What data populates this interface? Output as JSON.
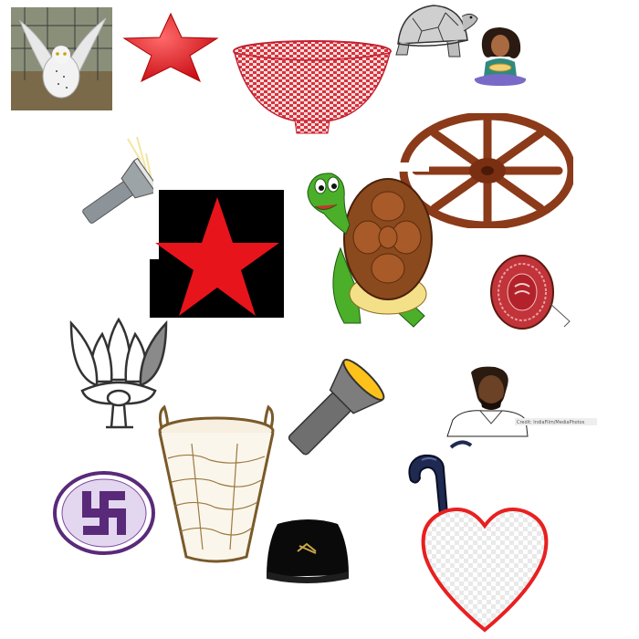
{
  "canvas": {
    "background": "#ffffff"
  },
  "items": [
    {
      "name": "owl-photo-icon",
      "kind": "photo"
    },
    {
      "name": "red-star-icon",
      "kind": "clipart"
    },
    {
      "name": "woven-basket-bowl-icon",
      "kind": "clipart"
    },
    {
      "name": "tortoise-sketch-icon",
      "kind": "drawing"
    },
    {
      "name": "woman-eating-icon",
      "kind": "clipart"
    },
    {
      "name": "flashlight-small-icon",
      "kind": "clipart"
    },
    {
      "name": "cart-wheel-icon",
      "kind": "clipart"
    },
    {
      "name": "red-star-black-square-icon",
      "kind": "clipart"
    },
    {
      "name": "cartoon-turtle-icon",
      "kind": "clipart"
    },
    {
      "name": "drum-shield-icon",
      "kind": "clipart"
    },
    {
      "name": "lotus-outline-icon",
      "kind": "symbol"
    },
    {
      "name": "flashlight-large-icon",
      "kind": "clipart"
    },
    {
      "name": "man-photo-icon",
      "kind": "photo",
      "credit": "Credit: IndiaFilm/MediaPhotos"
    },
    {
      "name": "walking-stick-icon",
      "kind": "clipart"
    },
    {
      "name": "swastika-badge-icon",
      "kind": "symbol"
    },
    {
      "name": "tall-basket-icon",
      "kind": "drawing"
    },
    {
      "name": "black-cap-icon",
      "kind": "clipart"
    },
    {
      "name": "heart-outline-icon",
      "kind": "symbol"
    }
  ],
  "colors": {
    "red": "#e8141b",
    "black": "#000000",
    "turtle_shell": "#8a4a1e",
    "turtle_skin": "#4caf2a",
    "wheel_brown": "#8b3a1a",
    "swastika_purple": "#5a2a7a",
    "lotus_gray": "#555555",
    "flashlight_gray": "#6f6f6f",
    "flashlight_glow": "#ffc21a",
    "heart_red": "#e82020"
  }
}
